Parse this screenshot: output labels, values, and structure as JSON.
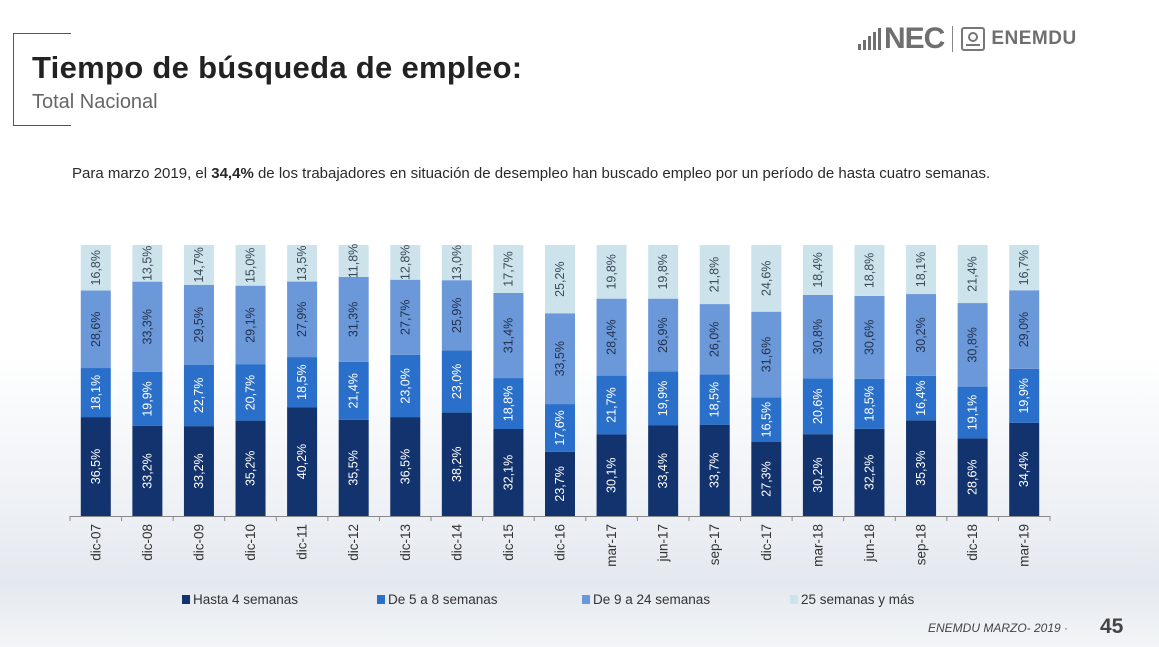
{
  "header": {
    "title": "Tiempo de búsqueda de empleo:",
    "subtitle": "Total Nacional",
    "logo_nec": "NEC",
    "logo_enemdu": "ENEMDU"
  },
  "description": {
    "prefix": "Para marzo 2019, el ",
    "highlight": "34,4%",
    "suffix": " de los trabajadores en situación de desempleo han buscado empleo por un período de hasta cuatro semanas."
  },
  "footer": {
    "source": "ENEMDU MARZO- 2019  ·",
    "page": "45"
  },
  "chart_data": {
    "type": "bar",
    "stacked": true,
    "percent_stacked": true,
    "title": "",
    "xlabel": "",
    "ylabel": "",
    "ylim": [
      0,
      100
    ],
    "grid": false,
    "legend_position": "bottom",
    "categories": [
      "dic-07",
      "dic-08",
      "dic-09",
      "dic-10",
      "dic-11",
      "dic-12",
      "dic-13",
      "dic-14",
      "dic-15",
      "dic-16",
      "mar-17",
      "jun-17",
      "sep-17",
      "dic-17",
      "mar-18",
      "jun-18",
      "sep-18",
      "dic-18",
      "mar-19"
    ],
    "series": [
      {
        "name": "Hasta 4 semanas",
        "color": "#12336e",
        "label_color": "#ffffff",
        "values": [
          36.5,
          33.2,
          33.2,
          35.2,
          40.2,
          35.5,
          36.5,
          38.2,
          32.1,
          23.7,
          30.1,
          33.4,
          33.7,
          27.3,
          30.2,
          32.2,
          35.3,
          28.6,
          34.4
        ]
      },
      {
        "name": "De 5 a 8 semanas",
        "color": "#2a6fc9",
        "label_color": "#ffffff",
        "values": [
          18.1,
          19.9,
          22.7,
          20.7,
          18.5,
          21.4,
          23.0,
          23.0,
          18.8,
          17.6,
          21.7,
          19.9,
          18.5,
          16.5,
          20.6,
          18.5,
          16.4,
          19.1,
          19.9
        ]
      },
      {
        "name": "De 9 a 24 semanas",
        "color": "#6b98d8",
        "label_color": "#23324f",
        "values": [
          28.6,
          33.3,
          29.5,
          29.1,
          27.9,
          31.3,
          27.7,
          25.9,
          31.4,
          33.5,
          28.4,
          26.9,
          26.0,
          31.6,
          30.8,
          30.6,
          30.2,
          30.8,
          29.0
        ]
      },
      {
        "name": "25 semanas y más",
        "color": "#cde3ec",
        "label_color": "#3a4a5a",
        "values": [
          16.8,
          13.5,
          14.7,
          15.0,
          13.5,
          11.8,
          12.8,
          13.0,
          17.7,
          25.2,
          19.8,
          19.8,
          21.8,
          24.6,
          18.4,
          18.8,
          18.1,
          21.4,
          16.7
        ]
      }
    ],
    "value_format": "decimal-comma-percent"
  }
}
